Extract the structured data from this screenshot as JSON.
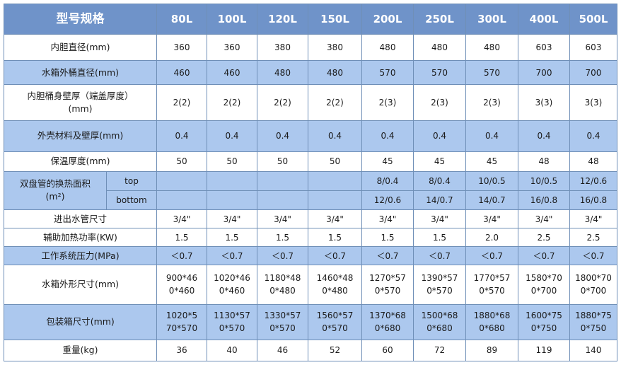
{
  "header": {
    "title": "型号规格",
    "models": [
      "80L",
      "100L",
      "120L",
      "150L",
      "200L",
      "250L",
      "300L",
      "400L",
      "500L"
    ]
  },
  "rows": {
    "inner_diameter": {
      "label": "内胆直径(mm)",
      "values": [
        "360",
        "360",
        "380",
        "380",
        "480",
        "480",
        "480",
        "603",
        "603"
      ]
    },
    "tank_diameter": {
      "label": "水箱外桶直径(mm)",
      "values": [
        "460",
        "460",
        "480",
        "480",
        "570",
        "570",
        "570",
        "700",
        "700"
      ]
    },
    "wall_thickness": {
      "label_line1": "内胆桶身壁厚（端盖厚度）",
      "label_line2": "(mm)",
      "values": [
        "2(2)",
        "2(2)",
        "2(2)",
        "2(2)",
        "2(3)",
        "2(3)",
        "2(3)",
        "3(3)",
        "3(3)"
      ]
    },
    "shell": {
      "label": "外壳材料及壁厚(mm)",
      "values": [
        "0.4",
        "0.4",
        "0.4",
        "0.4",
        "0.4",
        "0.4",
        "0.4",
        "0.4",
        "0.4"
      ]
    },
    "insulation": {
      "label": "保温厚度(mm)",
      "values": [
        "50",
        "50",
        "50",
        "50",
        "45",
        "45",
        "45",
        "48",
        "48"
      ]
    },
    "coil": {
      "label_line1": "双盘管的换热面积",
      "label_line2": "(m²)",
      "top_label": "top",
      "bottom_label": "bottom",
      "top_values": [
        "",
        "",
        "",
        "",
        "8/0.4",
        "8/0.4",
        "10/0.5",
        "10/0.5",
        "12/0.6"
      ],
      "bottom_values": [
        "",
        "",
        "",
        "",
        "12/0.6",
        "14/0.7",
        "14/0.7",
        "16/0.8",
        "16/0.8"
      ]
    },
    "pipe": {
      "label": "进出水管尺寸",
      "values": [
        "3/4\"",
        "3/4\"",
        "3/4\"",
        "3/4\"",
        "3/4\"",
        "3/4\"",
        "3/4\"",
        "3/4\"",
        "3/4\""
      ]
    },
    "heater": {
      "label": "辅助加热功率(KW)",
      "values": [
        "1.5",
        "1.5",
        "1.5",
        "1.5",
        "1.5",
        "1.5",
        "2.0",
        "2.5",
        "2.5"
      ]
    },
    "pressure": {
      "label": "工作系统压力(MPa)",
      "values": [
        "＜0.7",
        "＜0.7",
        "＜0.7",
        "＜0.7",
        "＜0.7",
        "＜0.7",
        "＜0.7",
        "＜0.7",
        "＜0.7"
      ]
    },
    "tank_size": {
      "label": "水箱外形尺寸(mm)",
      "line1": [
        "900*46",
        "1020*46",
        "1180*48",
        "1460*48",
        "1270*57",
        "1390*57",
        "1770*57",
        "1580*70",
        "1800*70"
      ],
      "line2": [
        "0*460",
        "0*460",
        "0*480",
        "0*480",
        "0*570",
        "0*570",
        "0*570",
        "0*700",
        "0*700"
      ]
    },
    "package_size": {
      "label": "包装箱尺寸(mm)",
      "line1": [
        "1020*5",
        "1130*57",
        "1330*57",
        "1560*57",
        "1370*68",
        "1500*68",
        "1880*68",
        "1600*75",
        "1880*75"
      ],
      "line2": [
        "70*570",
        "0*570",
        "0*570",
        "0*570",
        "0*680",
        "0*680",
        "0*680",
        "0*750",
        "0*750"
      ]
    },
    "weight": {
      "label": "重量(kg)",
      "values": [
        "36",
        "40",
        "46",
        "52",
        "60",
        "72",
        "89",
        "119",
        "140"
      ]
    }
  }
}
